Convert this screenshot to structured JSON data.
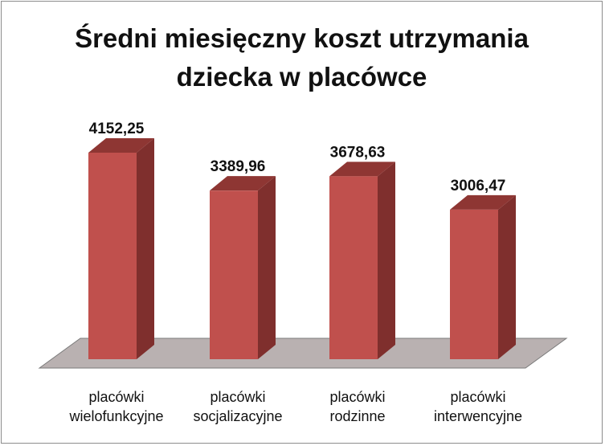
{
  "chart_data": {
    "type": "bar",
    "title_lines": [
      "Średni miesięczny koszt utrzymania",
      "dziecka w placówce"
    ],
    "categories": [
      [
        "placówki",
        "wielofunkcyjne"
      ],
      [
        "placówki",
        "socjalizacyjne"
      ],
      [
        "placówki",
        "rodzinne"
      ],
      [
        "placówki",
        "interwencyjne"
      ]
    ],
    "values": [
      4152.25,
      3389.96,
      3678.63,
      3006.47
    ],
    "value_labels": [
      "4152,25",
      "3389,96",
      "3678,63",
      "3006,47"
    ],
    "ylim": [
      0,
      4700
    ],
    "grid": false,
    "legend": "none",
    "colors": {
      "bar_front": "#c0504d",
      "bar_side": "#7f2f2d",
      "bar_top": "#8e3633",
      "floor": "#b9b1b1"
    }
  }
}
